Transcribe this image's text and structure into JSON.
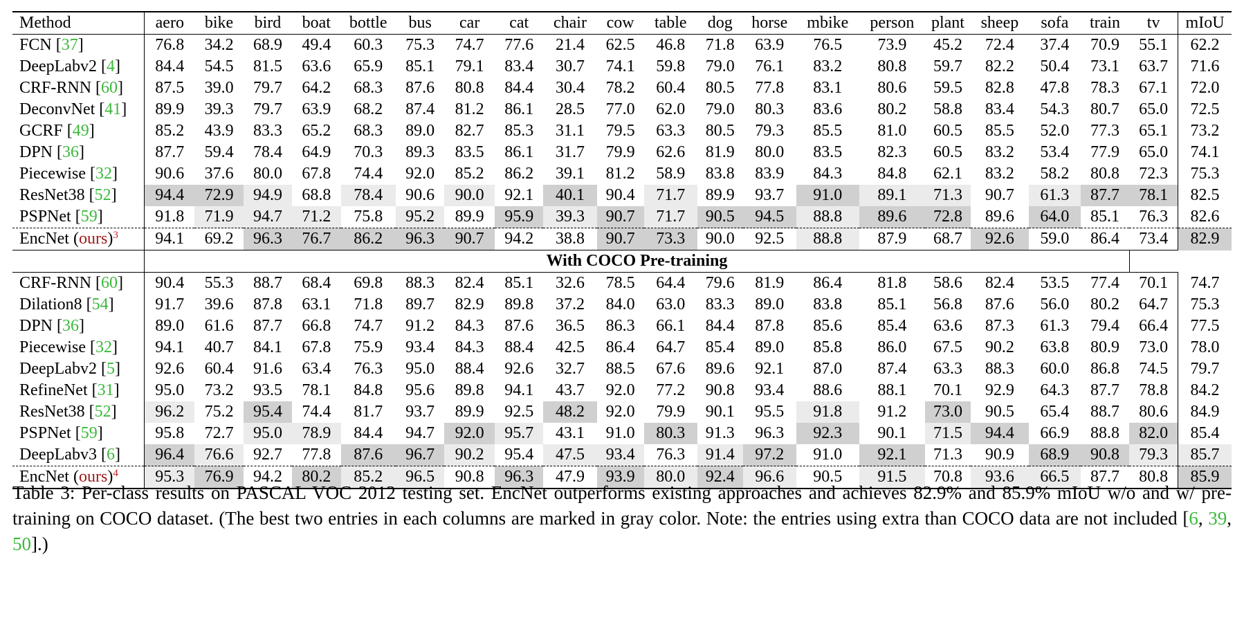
{
  "table": {
    "columns": [
      "Method",
      "aero",
      "bike",
      "bird",
      "boat",
      "bottle",
      "bus",
      "car",
      "cat",
      "chair",
      "cow",
      "table",
      "dog",
      "horse",
      "mbike",
      "person",
      "plant",
      "sheep",
      "sofa",
      "train",
      "tv",
      "mIoU"
    ],
    "section_label": "With COCO Pre-training",
    "group1": [
      {
        "method": "FCN",
        "ref": "37",
        "values": [
          "76.8",
          "34.2",
          "68.9",
          "49.4",
          "60.3",
          "75.3",
          "74.7",
          "77.6",
          "21.4",
          "62.5",
          "46.8",
          "71.8",
          "63.9",
          "76.5",
          "73.9",
          "45.2",
          "72.4",
          "37.4",
          "70.9",
          "55.1",
          "62.2"
        ]
      },
      {
        "method": "DeepLabv2",
        "ref": "4",
        "values": [
          "84.4",
          "54.5",
          "81.5",
          "63.6",
          "65.9",
          "85.1",
          "79.1",
          "83.4",
          "30.7",
          "74.1",
          "59.8",
          "79.0",
          "76.1",
          "83.2",
          "80.8",
          "59.7",
          "82.2",
          "50.4",
          "73.1",
          "63.7",
          "71.6"
        ]
      },
      {
        "method": "CRF-RNN",
        "ref": "60",
        "values": [
          "87.5",
          "39.0",
          "79.7",
          "64.2",
          "68.3",
          "87.6",
          "80.8",
          "84.4",
          "30.4",
          "78.2",
          "60.4",
          "80.5",
          "77.8",
          "83.1",
          "80.6",
          "59.5",
          "82.8",
          "47.8",
          "78.3",
          "67.1",
          "72.0"
        ]
      },
      {
        "method": "DeconvNet",
        "ref": "41",
        "values": [
          "89.9",
          "39.3",
          "79.7",
          "63.9",
          "68.2",
          "87.4",
          "81.2",
          "86.1",
          "28.5",
          "77.0",
          "62.0",
          "79.0",
          "80.3",
          "83.6",
          "80.2",
          "58.8",
          "83.4",
          "54.3",
          "80.7",
          "65.0",
          "72.5"
        ]
      },
      {
        "method": "GCRF",
        "ref": "49",
        "values": [
          "85.2",
          "43.9",
          "83.3",
          "65.2",
          "68.3",
          "89.0",
          "82.7",
          "85.3",
          "31.1",
          "79.5",
          "63.3",
          "80.5",
          "79.3",
          "85.5",
          "81.0",
          "60.5",
          "85.5",
          "52.0",
          "77.3",
          "65.1",
          "73.2"
        ]
      },
      {
        "method": "DPN",
        "ref": "36",
        "values": [
          "87.7",
          "59.4",
          "78.4",
          "64.9",
          "70.3",
          "89.3",
          "83.5",
          "86.1",
          "31.7",
          "79.9",
          "62.6",
          "81.9",
          "80.0",
          "83.5",
          "82.3",
          "60.5",
          "83.2",
          "53.4",
          "77.9",
          "65.0",
          "74.1"
        ]
      },
      {
        "method": "Piecewise",
        "ref": "32",
        "values": [
          "90.6",
          "37.6",
          "80.0",
          "67.8",
          "74.4",
          "92.0",
          "85.2",
          "86.2",
          "39.1",
          "81.2",
          "58.9",
          "83.8",
          "83.9",
          "84.3",
          "84.8",
          "62.1",
          "83.2",
          "58.2",
          "80.8",
          "72.3",
          "75.3"
        ]
      },
      {
        "method": "ResNet38",
        "ref": "52",
        "values": [
          "94.4",
          "72.9",
          "94.9",
          "68.8",
          "78.4",
          "90.6",
          "90.0",
          "92.1",
          "40.1",
          "90.4",
          "71.7",
          "89.9",
          "93.7",
          "91.0",
          "89.1",
          "71.3",
          "90.7",
          "61.3",
          "87.7",
          "78.1",
          "82.5"
        ],
        "shade": [
          "g1",
          "g1",
          "g2",
          "",
          "g2",
          "",
          "g2",
          "",
          "g1",
          "",
          "g2",
          "",
          "",
          "g1",
          "g2",
          "g2",
          "",
          "g2",
          "g1",
          "g1",
          ""
        ],
        "bold": [
          1,
          1,
          0,
          0,
          0,
          0,
          0,
          0,
          1,
          0,
          0,
          0,
          0,
          1,
          0,
          0,
          0,
          0,
          1,
          1,
          0
        ]
      },
      {
        "method": "PSPNet",
        "ref": "59",
        "values": [
          "91.8",
          "71.9",
          "94.7",
          "71.2",
          "75.8",
          "95.2",
          "89.9",
          "95.9",
          "39.3",
          "90.7",
          "71.7",
          "90.5",
          "94.5",
          "88.8",
          "89.6",
          "72.8",
          "89.6",
          "64.0",
          "85.1",
          "76.3",
          "82.6"
        ],
        "shade": [
          "",
          "g2",
          "g2",
          "g2",
          "",
          "g2",
          "",
          "g1",
          "g2",
          "g1",
          "g2",
          "g1",
          "g1",
          "g2",
          "g1",
          "g1",
          "",
          "g1",
          "",
          "",
          ""
        ],
        "bold": [
          0,
          0,
          0,
          0,
          0,
          0,
          0,
          1,
          0,
          1,
          0,
          1,
          1,
          0,
          1,
          1,
          0,
          1,
          0,
          0,
          0
        ]
      },
      {
        "method": "EncNet",
        "ours": "ours",
        "sup": "3",
        "values": [
          "94.1",
          "69.2",
          "96.3",
          "76.7",
          "86.2",
          "96.3",
          "90.7",
          "94.2",
          "38.8",
          "90.7",
          "73.3",
          "90.0",
          "92.5",
          "88.8",
          "87.9",
          "68.7",
          "92.6",
          "59.0",
          "86.4",
          "73.4",
          "82.9"
        ],
        "shade": [
          "",
          "",
          "g1",
          "g1",
          "g1",
          "g1",
          "g1",
          "",
          "",
          "g1",
          "g1",
          "",
          "",
          "g2",
          "",
          "",
          "g1",
          "",
          "",
          "",
          "g1"
        ],
        "bold": [
          0,
          0,
          1,
          1,
          1,
          1,
          1,
          0,
          0,
          1,
          1,
          0,
          0,
          0,
          0,
          0,
          1,
          0,
          0,
          0,
          1
        ]
      }
    ],
    "group2": [
      {
        "method": "CRF-RNN",
        "ref": "60",
        "values": [
          "90.4",
          "55.3",
          "88.7",
          "68.4",
          "69.8",
          "88.3",
          "82.4",
          "85.1",
          "32.6",
          "78.5",
          "64.4",
          "79.6",
          "81.9",
          "86.4",
          "81.8",
          "58.6",
          "82.4",
          "53.5",
          "77.4",
          "70.1",
          "74.7"
        ]
      },
      {
        "method": "Dilation8",
        "ref": "54",
        "values": [
          "91.7",
          "39.6",
          "87.8",
          "63.1",
          "71.8",
          "89.7",
          "82.9",
          "89.8",
          "37.2",
          "84.0",
          "63.0",
          "83.3",
          "89.0",
          "83.8",
          "85.1",
          "56.8",
          "87.6",
          "56.0",
          "80.2",
          "64.7",
          "75.3"
        ]
      },
      {
        "method": "DPN",
        "ref": "36",
        "values": [
          "89.0",
          "61.6",
          "87.7",
          "66.8",
          "74.7",
          "91.2",
          "84.3",
          "87.6",
          "36.5",
          "86.3",
          "66.1",
          "84.4",
          "87.8",
          "85.6",
          "85.4",
          "63.6",
          "87.3",
          "61.3",
          "79.4",
          "66.4",
          "77.5"
        ]
      },
      {
        "method": "Piecewise",
        "ref": "32",
        "values": [
          "94.1",
          "40.7",
          "84.1",
          "67.8",
          "75.9",
          "93.4",
          "84.3",
          "88.4",
          "42.5",
          "86.4",
          "64.7",
          "85.4",
          "89.0",
          "85.8",
          "86.0",
          "67.5",
          "90.2",
          "63.8",
          "80.9",
          "73.0",
          "78.0"
        ]
      },
      {
        "method": "DeepLabv2",
        "ref": "5",
        "values": [
          "92.6",
          "60.4",
          "91.6",
          "63.4",
          "76.3",
          "95.0",
          "88.4",
          "92.6",
          "32.7",
          "88.5",
          "67.6",
          "89.6",
          "92.1",
          "87.0",
          "87.4",
          "63.3",
          "88.3",
          "60.0",
          "86.8",
          "74.5",
          "79.7"
        ]
      },
      {
        "method": "RefineNet",
        "ref": "31",
        "values": [
          "95.0",
          "73.2",
          "93.5",
          "78.1",
          "84.8",
          "95.6",
          "89.8",
          "94.1",
          "43.7",
          "92.0",
          "77.2",
          "90.8",
          "93.4",
          "88.6",
          "88.1",
          "70.1",
          "92.9",
          "64.3",
          "87.7",
          "78.8",
          "84.2"
        ]
      },
      {
        "method": "ResNet38",
        "ref": "52",
        "values": [
          "96.2",
          "75.2",
          "95.4",
          "74.4",
          "81.7",
          "93.7",
          "89.9",
          "92.5",
          "48.2",
          "92.0",
          "79.9",
          "90.1",
          "95.5",
          "91.8",
          "91.2",
          "73.0",
          "90.5",
          "65.4",
          "88.7",
          "80.6",
          "84.9"
        ],
        "shade": [
          "g2",
          "",
          "g1",
          "",
          "",
          "",
          "",
          "",
          "g1",
          "",
          "",
          "",
          "",
          "g2",
          "",
          "g1",
          "",
          "",
          "",
          "",
          ""
        ],
        "bold": [
          0,
          0,
          1,
          0,
          0,
          0,
          0,
          0,
          1,
          0,
          0,
          0,
          0,
          0,
          0,
          1,
          0,
          0,
          0,
          0,
          0
        ]
      },
      {
        "method": "PSPNet",
        "ref": "59",
        "values": [
          "95.8",
          "72.7",
          "95.0",
          "78.9",
          "84.4",
          "94.7",
          "92.0",
          "95.7",
          "43.1",
          "91.0",
          "80.3",
          "91.3",
          "96.3",
          "92.3",
          "90.1",
          "71.5",
          "94.4",
          "66.9",
          "88.8",
          "82.0",
          "85.4"
        ],
        "shade": [
          "",
          "",
          "g2",
          "g2",
          "",
          "",
          "g1",
          "g2",
          "",
          "",
          "g1",
          "",
          "",
          "g1",
          "",
          "g2",
          "g1",
          "",
          "",
          "g1",
          ""
        ],
        "bold": [
          0,
          0,
          0,
          0,
          0,
          0,
          1,
          0,
          0,
          0,
          1,
          0,
          0,
          1,
          0,
          0,
          1,
          0,
          0,
          1,
          0
        ]
      },
      {
        "method": "DeepLabv3",
        "ref": "6",
        "values": [
          "96.4",
          "76.6",
          "92.7",
          "77.8",
          "87.6",
          "96.7",
          "90.2",
          "95.4",
          "47.5",
          "93.4",
          "76.3",
          "91.4",
          "97.2",
          "91.0",
          "92.1",
          "71.3",
          "90.9",
          "68.9",
          "90.8",
          "79.3",
          "85.7"
        ],
        "shade": [
          "g1",
          "g2",
          "",
          "",
          "g1",
          "g1",
          "g2",
          "",
          "g2",
          "g2",
          "",
          "g2",
          "g1",
          "",
          "g1",
          "",
          "",
          "g1",
          "g1",
          "g2",
          "g2"
        ],
        "bold": [
          1,
          0,
          0,
          0,
          1,
          1,
          0,
          0,
          0,
          0,
          0,
          0,
          1,
          0,
          1,
          0,
          0,
          1,
          1,
          0,
          0
        ]
      },
      {
        "method": "EncNet",
        "ours": "ours",
        "sup": "4",
        "values": [
          "95.3",
          "76.9",
          "94.2",
          "80.2",
          "85.2",
          "96.5",
          "90.8",
          "96.3",
          "47.9",
          "93.9",
          "80.0",
          "92.4",
          "96.6",
          "90.5",
          "91.5",
          "70.8",
          "93.6",
          "66.5",
          "87.7",
          "80.8",
          "85.9"
        ],
        "shade": [
          "g2",
          "g1",
          "",
          "g1",
          "g2",
          "g2",
          "",
          "g1",
          "",
          "g1",
          "g2",
          "g1",
          "g2",
          "",
          "g2",
          "",
          "g2",
          "g2",
          "",
          "",
          "g1"
        ],
        "bold": [
          0,
          1,
          0,
          1,
          0,
          0,
          0,
          1,
          0,
          1,
          0,
          1,
          0,
          0,
          0,
          0,
          0,
          0,
          0,
          0,
          1
        ]
      }
    ]
  },
  "caption": {
    "text_before": "Table 3: Per-class results on PASCAL VOC 2012 testing set. EncNet outperforms existing approaches and achieves 82.9% and 85.9% mIoU w/o and w/ pre-training on COCO dataset. (The best two entries in each columns are marked in gray color. Note: the entries using extra than COCO data are not included [",
    "ref1": "6",
    "sep1": ", ",
    "ref2": "39",
    "sep2": ", ",
    "ref3": "50",
    "text_after": "].)"
  }
}
